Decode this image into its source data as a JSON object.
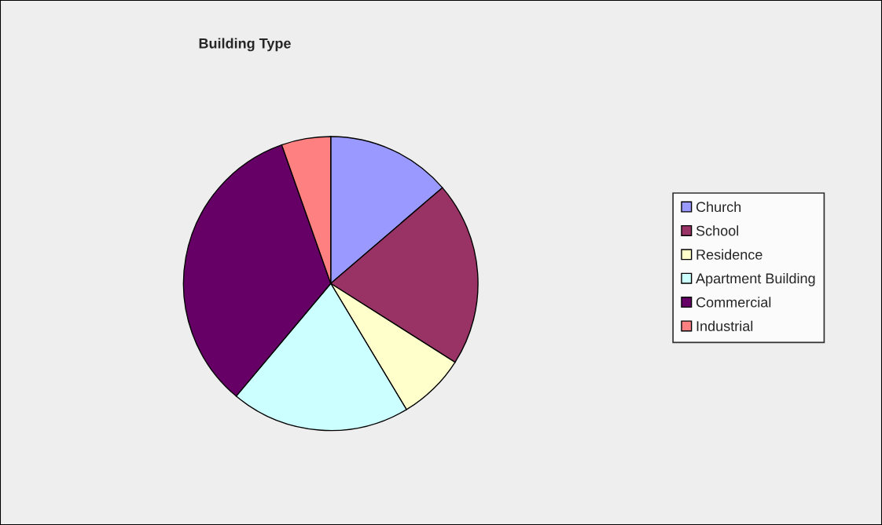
{
  "chart_data": {
    "type": "pie",
    "title": "Building Type",
    "categories": [
      "Church",
      "School",
      "Residence",
      "Apartment Building",
      "Commercial",
      "Industrial"
    ],
    "values": [
      13.7,
      20.3,
      7.4,
      19.7,
      33.5,
      5.4
    ],
    "colors": [
      "#9999ff",
      "#993366",
      "#ffffcc",
      "#ccffff",
      "#660066",
      "#ff8080"
    ],
    "legend": "right"
  }
}
